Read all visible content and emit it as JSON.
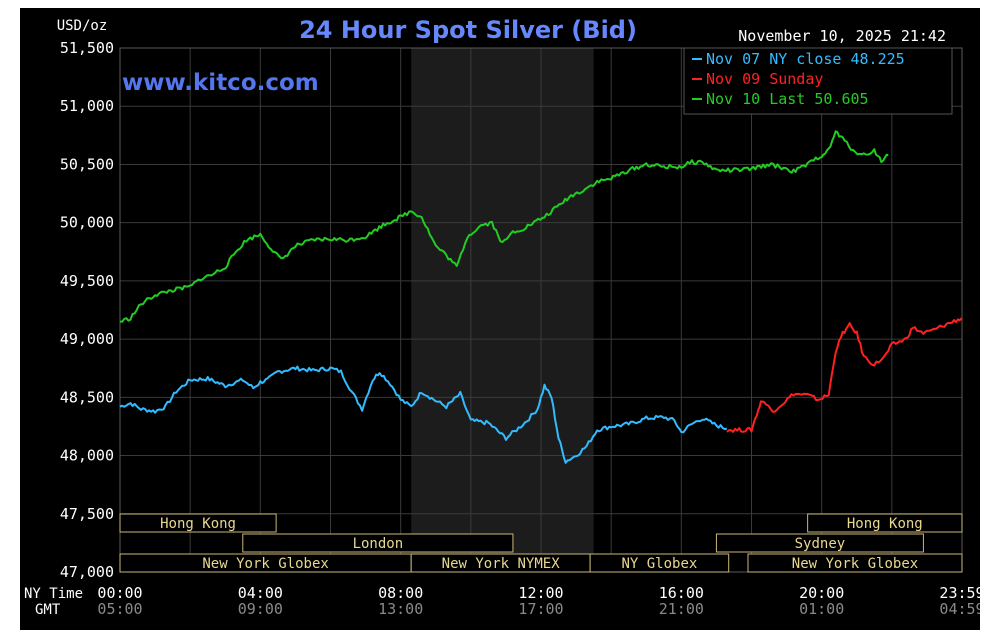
{
  "chart_data": {
    "type": "line",
    "title": "24 Hour Spot Silver (Bid)",
    "watermark": "www.kitco.com",
    "datetime": "November 10, 2025 21:42",
    "unit_label": "USD/oz",
    "ylim": [
      47.0,
      51.5
    ],
    "y_ticks": [
      "51,500",
      "51,000",
      "50,500",
      "50,000",
      "49,500",
      "49,000",
      "48,500",
      "48,000",
      "47,500",
      "47,000"
    ],
    "x_range_hours": [
      0,
      24
    ],
    "x_axis_label_ny": "NY Time",
    "x_axis_label_gmt": "GMT",
    "x_ticks_ny": [
      "00:00",
      "04:00",
      "08:00",
      "12:00",
      "16:00",
      "20:00",
      "23:59"
    ],
    "x_ticks_gmt": [
      "05:00",
      "09:00",
      "13:00",
      "17:00",
      "21:00",
      "01:00",
      "04:59"
    ],
    "grid": true,
    "shaded_session_hours": [
      8.3,
      13.5
    ],
    "legend_position": "top-right",
    "legend": [
      {
        "text": "Nov 07 NY close 48.225",
        "color": "#33bbff"
      },
      {
        "text": "Nov 09 Sunday",
        "color": "#ff2020"
      },
      {
        "text": "Nov 10 Last 50.605",
        "color": "#22cc22"
      }
    ],
    "series": [
      {
        "name": "Nov 07 NY close 48.225",
        "color": "#33bbff",
        "points": [
          [
            0,
            48.42
          ],
          [
            0.3,
            48.45
          ],
          [
            0.6,
            48.4
          ],
          [
            1.0,
            48.38
          ],
          [
            1.3,
            48.42
          ],
          [
            1.6,
            48.55
          ],
          [
            2.0,
            48.65
          ],
          [
            2.5,
            48.66
          ],
          [
            3.0,
            48.6
          ],
          [
            3.5,
            48.65
          ],
          [
            3.8,
            48.58
          ],
          [
            4.0,
            48.63
          ],
          [
            4.2,
            48.65
          ],
          [
            4.5,
            48.72
          ],
          [
            5.0,
            48.75
          ],
          [
            5.5,
            48.73
          ],
          [
            6.0,
            48.75
          ],
          [
            6.3,
            48.72
          ],
          [
            6.6,
            48.55
          ],
          [
            6.9,
            48.4
          ],
          [
            7.2,
            48.65
          ],
          [
            7.4,
            48.72
          ],
          [
            7.7,
            48.62
          ],
          [
            8.0,
            48.48
          ],
          [
            8.3,
            48.42
          ],
          [
            8.6,
            48.55
          ],
          [
            9.0,
            48.47
          ],
          [
            9.3,
            48.42
          ],
          [
            9.7,
            48.53
          ],
          [
            10.0,
            48.3
          ],
          [
            10.5,
            48.28
          ],
          [
            11.0,
            48.15
          ],
          [
            11.3,
            48.22
          ],
          [
            11.6,
            48.3
          ],
          [
            11.9,
            48.4
          ],
          [
            12.1,
            48.6
          ],
          [
            12.3,
            48.5
          ],
          [
            12.5,
            48.15
          ],
          [
            12.7,
            47.95
          ],
          [
            13.0,
            48.0
          ],
          [
            13.3,
            48.08
          ],
          [
            13.6,
            48.22
          ],
          [
            14.0,
            48.25
          ],
          [
            14.5,
            48.27
          ],
          [
            15.0,
            48.32
          ],
          [
            15.5,
            48.33
          ],
          [
            15.8,
            48.3
          ],
          [
            16.0,
            48.2
          ],
          [
            16.3,
            48.27
          ],
          [
            16.6,
            48.32
          ],
          [
            17.0,
            48.26
          ],
          [
            17.3,
            48.23
          ]
        ]
      },
      {
        "name": "Nov 09 Sunday",
        "color": "#ff2020",
        "points": [
          [
            17.3,
            48.22
          ],
          [
            18.0,
            48.22
          ],
          [
            18.2,
            48.4
          ],
          [
            18.3,
            48.48
          ],
          [
            18.6,
            48.38
          ],
          [
            18.9,
            48.45
          ],
          [
            19.2,
            48.53
          ],
          [
            19.6,
            48.52
          ],
          [
            19.9,
            48.48
          ],
          [
            20.2,
            48.52
          ],
          [
            20.4,
            48.9
          ],
          [
            20.6,
            49.05
          ],
          [
            20.8,
            49.12
          ],
          [
            21.0,
            49.05
          ],
          [
            21.2,
            48.85
          ],
          [
            21.5,
            48.78
          ],
          [
            21.8,
            48.85
          ],
          [
            22.0,
            48.95
          ],
          [
            22.4,
            49.0
          ],
          [
            22.6,
            49.1
          ],
          [
            22.9,
            49.05
          ],
          [
            23.2,
            49.08
          ],
          [
            23.5,
            49.12
          ],
          [
            23.99,
            49.18
          ]
        ]
      },
      {
        "name": "Nov 10 Last 50.605",
        "color": "#22cc22",
        "points": [
          [
            0,
            49.15
          ],
          [
            0.3,
            49.18
          ],
          [
            0.6,
            49.3
          ],
          [
            1.0,
            49.38
          ],
          [
            1.5,
            49.42
          ],
          [
            2.0,
            49.45
          ],
          [
            2.3,
            49.52
          ],
          [
            2.6,
            49.55
          ],
          [
            3.0,
            49.62
          ],
          [
            3.3,
            49.75
          ],
          [
            3.6,
            49.85
          ],
          [
            4.0,
            49.9
          ],
          [
            4.3,
            49.78
          ],
          [
            4.6,
            49.68
          ],
          [
            5.0,
            49.8
          ],
          [
            5.5,
            49.85
          ],
          [
            6.0,
            49.86
          ],
          [
            6.5,
            49.85
          ],
          [
            7.0,
            49.88
          ],
          [
            7.5,
            49.98
          ],
          [
            8.0,
            50.05
          ],
          [
            8.3,
            50.1
          ],
          [
            8.6,
            50.05
          ],
          [
            9.0,
            49.8
          ],
          [
            9.3,
            49.72
          ],
          [
            9.6,
            49.62
          ],
          [
            9.9,
            49.88
          ],
          [
            10.3,
            49.98
          ],
          [
            10.6,
            50.0
          ],
          [
            10.9,
            49.82
          ],
          [
            11.2,
            49.92
          ],
          [
            11.5,
            49.95
          ],
          [
            11.8,
            50.0
          ],
          [
            12.1,
            50.05
          ],
          [
            12.4,
            50.12
          ],
          [
            12.8,
            50.22
          ],
          [
            13.2,
            50.28
          ],
          [
            13.6,
            50.35
          ],
          [
            14.0,
            50.38
          ],
          [
            14.5,
            50.45
          ],
          [
            15.0,
            50.5
          ],
          [
            15.5,
            50.48
          ],
          [
            16.0,
            50.48
          ],
          [
            16.3,
            50.52
          ],
          [
            16.6,
            50.52
          ],
          [
            17.0,
            50.45
          ],
          [
            17.5,
            50.45
          ],
          [
            18.0,
            50.46
          ],
          [
            18.5,
            50.5
          ],
          [
            18.8,
            50.48
          ],
          [
            19.2,
            50.44
          ],
          [
            19.6,
            50.5
          ],
          [
            20.0,
            50.58
          ],
          [
            20.2,
            50.62
          ],
          [
            20.4,
            50.78
          ],
          [
            20.6,
            50.72
          ],
          [
            20.9,
            50.62
          ],
          [
            21.2,
            50.58
          ],
          [
            21.5,
            50.62
          ],
          [
            21.7,
            50.53
          ],
          [
            21.9,
            50.58
          ]
        ]
      }
    ],
    "sessions": [
      {
        "label": "Hong Kong",
        "row": 0,
        "start": 0.0,
        "end": 4.45
      },
      {
        "label": "London",
        "row": 1,
        "start": 3.5,
        "end": 11.2
      },
      {
        "label": "New York Globex",
        "row": 2,
        "start": 0.0,
        "end": 8.3
      },
      {
        "label": "New York NYMEX",
        "row": 2,
        "start": 8.3,
        "end": 13.4
      },
      {
        "label": "NY Globex",
        "row": 2,
        "start": 13.4,
        "end": 17.35
      },
      {
        "label": "Hong Kong",
        "row": 0,
        "start": 19.6,
        "end": 24.0
      },
      {
        "label": "Sydney",
        "row": 1,
        "start": 17.0,
        "end": 22.9
      },
      {
        "label": "New York Globex",
        "row": 2,
        "start": 17.9,
        "end": 24.0
      }
    ]
  }
}
